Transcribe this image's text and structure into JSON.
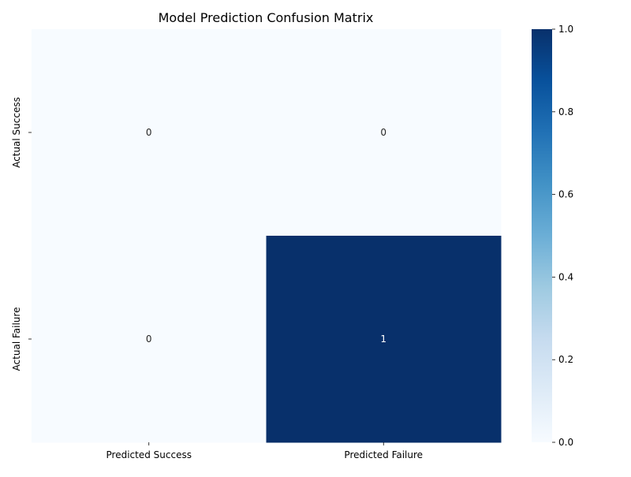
{
  "chart_data": {
    "type": "heatmap",
    "title": "Model Prediction Confusion Matrix",
    "xlabel": "",
    "ylabel": "",
    "x_categories": [
      "Predicted Success",
      "Predicted Failure"
    ],
    "y_categories": [
      "Actual Success",
      "Actual Failure"
    ],
    "values": [
      [
        0,
        0
      ],
      [
        0,
        1
      ]
    ],
    "annotations": true,
    "colormap": "Blues",
    "color_low": "#f7fbff",
    "color_high": "#08306b",
    "vmin": 0,
    "vmax": 1,
    "colorbar_ticks": [
      "0.0",
      "0.2",
      "0.4",
      "0.6",
      "0.8",
      "1.0"
    ],
    "grid": false
  }
}
